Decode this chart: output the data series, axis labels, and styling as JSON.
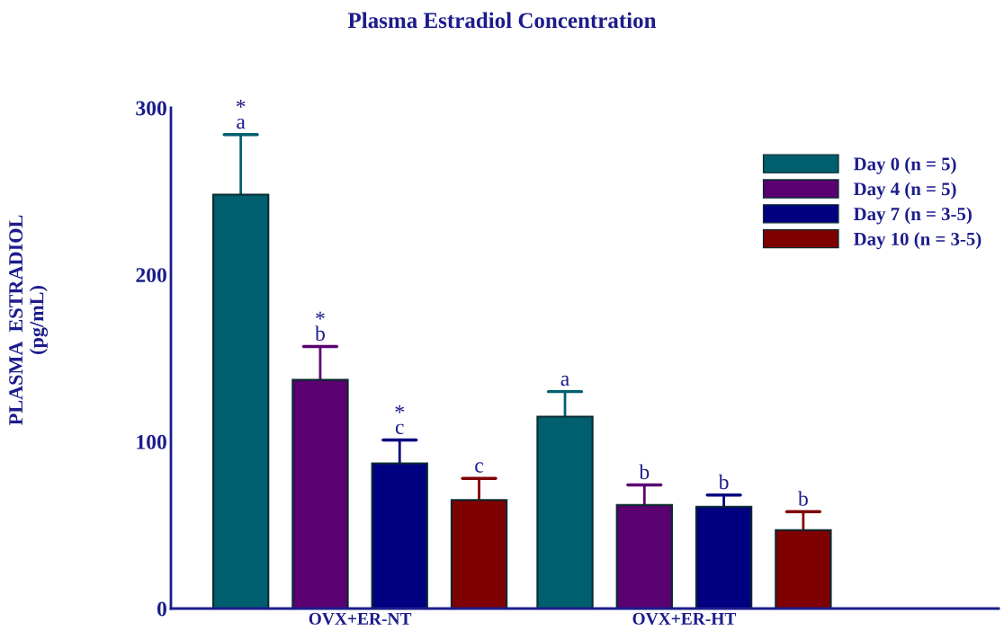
{
  "chart_data": {
    "type": "bar",
    "title": "Plasma Estradiol Concentration",
    "ylabel": "PLASMA  ESTRADIOL\n(pg/mL)",
    "categories": [
      "OVX+ER-NT",
      "OVX+ER-HT"
    ],
    "series": [
      {
        "name": "Day 0 (n = 5)",
        "color": "#005f6e",
        "values": [
          248,
          115
        ],
        "errors": [
          [
            248,
            284
          ],
          [
            115,
            130
          ]
        ],
        "value_labels": [
          "*\na",
          "a"
        ]
      },
      {
        "name": "Day 4 (n = 5)",
        "color": "#5a0070",
        "values": [
          137,
          62
        ],
        "errors": [
          [
            137,
            157
          ],
          [
            62,
            74
          ]
        ],
        "value_labels": [
          "*\nb",
          "b"
        ]
      },
      {
        "name": "Day 7 (n = 3-5)",
        "color": "#000080",
        "values": [
          87,
          61
        ],
        "errors": [
          [
            87,
            101
          ],
          [
            61,
            68
          ]
        ],
        "value_labels": [
          "*\nc",
          "b"
        ]
      },
      {
        "name": "Day 10 (n = 3-5)",
        "color": "#7f0000",
        "values": [
          65,
          47
        ],
        "errors": [
          [
            65,
            78
          ],
          [
            47,
            58
          ]
        ],
        "value_labels": [
          "c",
          "b"
        ]
      }
    ],
    "ylim": [
      0,
      300
    ],
    "yticks": [
      0,
      100,
      200,
      300
    ],
    "legend": "top right",
    "grid": false
  }
}
